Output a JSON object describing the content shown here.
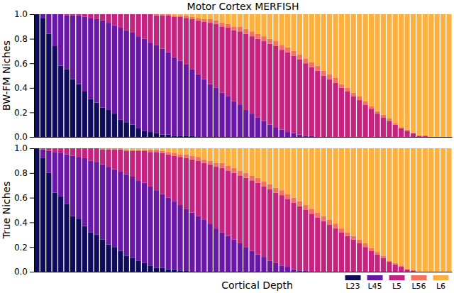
{
  "chart_data": [
    {
      "type": "bar",
      "title": "Motor Cortex MERFISH",
      "ylabel": "BW-FM Niches",
      "stacked": true,
      "tick_labels": "y",
      "categories": [
        null,
        null,
        null,
        null,
        null,
        null,
        null,
        null,
        null,
        null,
        null,
        null,
        null,
        null,
        null,
        null,
        null,
        null,
        null,
        null,
        null,
        null,
        null,
        null,
        null,
        null,
        null,
        null,
        null,
        null,
        null,
        null,
        null,
        null,
        null,
        null,
        null,
        null,
        null,
        null,
        null,
        null,
        null,
        null,
        null,
        null,
        null,
        null,
        null,
        null,
        null,
        null,
        null,
        null,
        null,
        null,
        null,
        null,
        null,
        null,
        null,
        null,
        null,
        null,
        null,
        null,
        null,
        null,
        null,
        null
      ],
      "ylim": [
        0,
        1
      ],
      "yticks": [
        {
          "value": 0,
          "label": "0.0"
        },
        {
          "value": 0.2,
          "label": "0.2"
        },
        {
          "value": 0.4,
          "label": "0.4"
        },
        {
          "value": 0.6,
          "label": "0.6"
        },
        {
          "value": 0.8,
          "label": "0.8"
        },
        {
          "value": 1,
          "label": "1.0"
        }
      ],
      "series": [
        {
          "name": "L23",
          "color": "#100c5c",
          "values": [
            1,
            0.97,
            0.84,
            0.74,
            0.58,
            0.55,
            0.47,
            0.43,
            0.37,
            0.31,
            0.28,
            0.24,
            0.22,
            0.19,
            0.14,
            0.12,
            0.1,
            0.07,
            0.05,
            0.04,
            0.03,
            0.02,
            0.02,
            0.01,
            0.01,
            0.01,
            0.01,
            0,
            0,
            0,
            0,
            0,
            0,
            0,
            0,
            0,
            0,
            0,
            0,
            0,
            0,
            0,
            0,
            0,
            0,
            0,
            0,
            0,
            0,
            0,
            0,
            0,
            0,
            0,
            0,
            0,
            0,
            0,
            0,
            0,
            0,
            0,
            0,
            0,
            0,
            0,
            0,
            0,
            0,
            0
          ]
        },
        {
          "name": "L45",
          "color": "#6818a5",
          "values": [
            0,
            0.03,
            0.16,
            0.26,
            0.42,
            0.44,
            0.52,
            0.56,
            0.61,
            0.66,
            0.68,
            0.71,
            0.71,
            0.72,
            0.75,
            0.75,
            0.75,
            0.75,
            0.75,
            0.73,
            0.72,
            0.7,
            0.67,
            0.64,
            0.61,
            0.58,
            0.54,
            0.51,
            0.47,
            0.43,
            0.4,
            0.36,
            0.33,
            0.29,
            0.26,
            0.22,
            0.19,
            0.16,
            0.13,
            0.1,
            0.08,
            0.06,
            0.04,
            0.03,
            0.02,
            0.01,
            0.01,
            0,
            0,
            0,
            0,
            0,
            0,
            0,
            0,
            0,
            0,
            0,
            0,
            0,
            0,
            0,
            0,
            0,
            0,
            0,
            0,
            0,
            0,
            0
          ]
        },
        {
          "name": "L5",
          "color": "#c2247f",
          "values": [
            0,
            0,
            0,
            0,
            0,
            0.01,
            0.01,
            0.01,
            0.02,
            0.03,
            0.04,
            0.05,
            0.07,
            0.09,
            0.11,
            0.13,
            0.15,
            0.18,
            0.2,
            0.23,
            0.24,
            0.27,
            0.3,
            0.33,
            0.36,
            0.38,
            0.41,
            0.44,
            0.47,
            0.5,
            0.52,
            0.54,
            0.56,
            0.58,
            0.6,
            0.62,
            0.63,
            0.64,
            0.65,
            0.66,
            0.66,
            0.65,
            0.65,
            0.63,
            0.61,
            0.59,
            0.56,
            0.54,
            0.5,
            0.47,
            0.44,
            0.4,
            0.37,
            0.33,
            0.3,
            0.26,
            0.23,
            0.19,
            0.16,
            0.13,
            0.1,
            0.07,
            0.05,
            0.03,
            0.01,
            0.01,
            0,
            0,
            0,
            0
          ]
        },
        {
          "name": "L56",
          "color": "#f2715f",
          "values": [
            0,
            0,
            0,
            0,
            0,
            0,
            0,
            0,
            0,
            0,
            0,
            0,
            0,
            0,
            0,
            0,
            0,
            0,
            0,
            0,
            0.01,
            0.01,
            0.01,
            0.01,
            0.01,
            0.02,
            0.02,
            0.02,
            0.02,
            0.03,
            0.03,
            0.03,
            0.03,
            0.03,
            0.04,
            0.04,
            0.04,
            0.04,
            0.04,
            0.04,
            0.04,
            0.04,
            0.04,
            0.04,
            0.04,
            0.04,
            0.04,
            0.04,
            0.04,
            0.04,
            0.04,
            0.03,
            0.03,
            0.03,
            0.03,
            0.03,
            0.02,
            0.02,
            0.02,
            0.02,
            0.01,
            0.01,
            0.01,
            0,
            0,
            0,
            0,
            0,
            0,
            0
          ]
        },
        {
          "name": "L6",
          "color": "#fbb040",
          "values": [
            0,
            0,
            0,
            0,
            0,
            0,
            0,
            0,
            0,
            0,
            0,
            0,
            0,
            0,
            0,
            0,
            0,
            0,
            0,
            0,
            0,
            0,
            0,
            0.01,
            0.01,
            0.01,
            0.02,
            0.03,
            0.04,
            0.04,
            0.05,
            0.07,
            0.08,
            0.1,
            0.1,
            0.12,
            0.14,
            0.16,
            0.18,
            0.2,
            0.22,
            0.25,
            0.27,
            0.3,
            0.33,
            0.36,
            0.39,
            0.42,
            0.46,
            0.49,
            0.52,
            0.57,
            0.6,
            0.64,
            0.67,
            0.71,
            0.75,
            0.79,
            0.82,
            0.85,
            0.89,
            0.92,
            0.94,
            0.97,
            0.99,
            0.99,
            1,
            1,
            1,
            1
          ]
        }
      ]
    },
    {
      "type": "bar",
      "ylabel": "True Niches",
      "xlabel": "Cortical Depth",
      "stacked": true,
      "tick_labels": "y",
      "legend": "lower right",
      "categories": [
        null,
        null,
        null,
        null,
        null,
        null,
        null,
        null,
        null,
        null,
        null,
        null,
        null,
        null,
        null,
        null,
        null,
        null,
        null,
        null,
        null,
        null,
        null,
        null,
        null,
        null,
        null,
        null,
        null,
        null,
        null,
        null,
        null,
        null,
        null,
        null,
        null,
        null,
        null,
        null,
        null,
        null,
        null,
        null,
        null,
        null,
        null,
        null,
        null,
        null,
        null,
        null,
        null,
        null,
        null,
        null,
        null,
        null,
        null,
        null,
        null,
        null,
        null,
        null,
        null,
        null,
        null,
        null,
        null,
        null
      ],
      "ylim": [
        0,
        1
      ],
      "yticks": [
        {
          "value": 0,
          "label": "0.0"
        },
        {
          "value": 0.2,
          "label": "0.2"
        },
        {
          "value": 0.4,
          "label": "0.4"
        },
        {
          "value": 0.6,
          "label": "0.6"
        },
        {
          "value": 0.8,
          "label": "0.8"
        },
        {
          "value": 1,
          "label": "1.0"
        }
      ],
      "series": [
        {
          "name": "L23",
          "color": "#100c5c",
          "values": [
            1,
            0.92,
            0.8,
            0.64,
            0.61,
            0.55,
            0.45,
            0.43,
            0.37,
            0.32,
            0.3,
            0.26,
            0.22,
            0.2,
            0.17,
            0.13,
            0.11,
            0.09,
            0.07,
            0.05,
            0.03,
            0.03,
            0.02,
            0.02,
            0.01,
            0.01,
            0,
            0,
            0,
            0,
            0,
            0,
            0,
            0,
            0,
            0,
            0,
            0,
            0,
            0,
            0,
            0,
            0,
            0,
            0,
            0,
            0,
            0,
            0,
            0,
            0,
            0,
            0,
            0,
            0,
            0,
            0,
            0,
            0,
            0,
            0,
            0,
            0,
            0,
            0,
            0,
            0,
            0,
            0,
            0
          ]
        },
        {
          "name": "L45",
          "color": "#6818a5",
          "values": [
            0,
            0.07,
            0.18,
            0.33,
            0.35,
            0.4,
            0.49,
            0.5,
            0.55,
            0.58,
            0.59,
            0.61,
            0.63,
            0.63,
            0.64,
            0.66,
            0.66,
            0.65,
            0.65,
            0.64,
            0.63,
            0.6,
            0.58,
            0.55,
            0.53,
            0.5,
            0.48,
            0.45,
            0.42,
            0.39,
            0.35,
            0.32,
            0.29,
            0.26,
            0.23,
            0.2,
            0.17,
            0.14,
            0.12,
            0.09,
            0.07,
            0.05,
            0.04,
            0.02,
            0.01,
            0.01,
            0,
            0,
            0,
            0,
            0,
            0,
            0,
            0,
            0,
            0,
            0,
            0,
            0,
            0,
            0,
            0,
            0,
            0,
            0,
            0,
            0,
            0,
            0,
            0
          ]
        },
        {
          "name": "L5",
          "color": "#c2247f",
          "values": [
            0,
            0.01,
            0.02,
            0.03,
            0.04,
            0.05,
            0.06,
            0.07,
            0.08,
            0.1,
            0.11,
            0.12,
            0.14,
            0.16,
            0.18,
            0.19,
            0.21,
            0.24,
            0.26,
            0.28,
            0.31,
            0.33,
            0.35,
            0.37,
            0.39,
            0.41,
            0.43,
            0.45,
            0.46,
            0.48,
            0.5,
            0.52,
            0.53,
            0.54,
            0.55,
            0.56,
            0.57,
            0.58,
            0.57,
            0.58,
            0.57,
            0.57,
            0.55,
            0.54,
            0.52,
            0.49,
            0.47,
            0.44,
            0.41,
            0.38,
            0.35,
            0.32,
            0.29,
            0.26,
            0.23,
            0.2,
            0.17,
            0.14,
            0.11,
            0.08,
            0.06,
            0.04,
            0.02,
            0.01,
            0,
            0,
            0,
            0,
            0,
            0
          ]
        },
        {
          "name": "L56",
          "color": "#f2715f",
          "values": [
            0,
            0,
            0,
            0,
            0,
            0,
            0,
            0,
            0,
            0,
            0,
            0.01,
            0.01,
            0.01,
            0.01,
            0.01,
            0.01,
            0.01,
            0.01,
            0.02,
            0.02,
            0.02,
            0.02,
            0.02,
            0.02,
            0.03,
            0.03,
            0.03,
            0.03,
            0.03,
            0.03,
            0.04,
            0.04,
            0.04,
            0.04,
            0.04,
            0.04,
            0.04,
            0.04,
            0.04,
            0.04,
            0.04,
            0.04,
            0.04,
            0.04,
            0.04,
            0.04,
            0.04,
            0.04,
            0.04,
            0.04,
            0.03,
            0.03,
            0.03,
            0.03,
            0.03,
            0.02,
            0.02,
            0.02,
            0.01,
            0.01,
            0.01,
            0,
            0,
            0,
            0,
            0,
            0,
            0,
            0
          ]
        },
        {
          "name": "L6",
          "color": "#fbb040",
          "values": [
            0,
            0,
            0,
            0,
            0,
            0,
            0,
            0,
            0,
            0,
            0,
            0,
            0,
            0,
            0,
            0.01,
            0.01,
            0.01,
            0.01,
            0.01,
            0.01,
            0.02,
            0.03,
            0.04,
            0.05,
            0.05,
            0.06,
            0.07,
            0.09,
            0.1,
            0.12,
            0.12,
            0.14,
            0.16,
            0.18,
            0.2,
            0.22,
            0.24,
            0.27,
            0.29,
            0.32,
            0.34,
            0.37,
            0.4,
            0.43,
            0.46,
            0.49,
            0.52,
            0.55,
            0.58,
            0.61,
            0.65,
            0.68,
            0.71,
            0.74,
            0.77,
            0.81,
            0.84,
            0.87,
            0.91,
            0.93,
            0.95,
            0.98,
            0.99,
            1,
            1,
            1,
            1,
            1,
            1
          ]
        }
      ]
    }
  ]
}
